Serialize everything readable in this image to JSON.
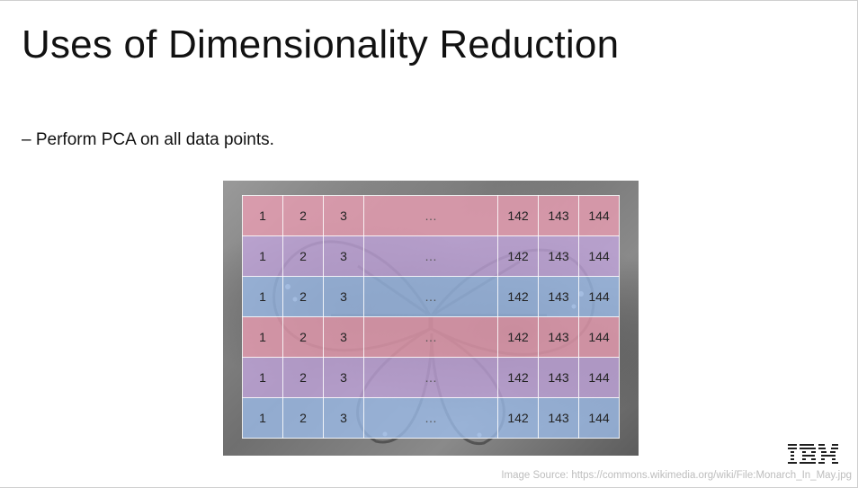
{
  "slide": {
    "title": "Uses of Dimensionality Reduction",
    "bullet": "– Perform PCA on all data points.",
    "source": "Image Source: https://commons.wikimedia.org/wiki/File:Monarch_In_May.jpg",
    "logo_text": "IBM"
  },
  "table": {
    "rows": [
      {
        "tint": "pink",
        "cells": [
          "1",
          "2",
          "3",
          "…",
          "142",
          "143",
          "144"
        ]
      },
      {
        "tint": "violet",
        "cells": [
          "1",
          "2",
          "3",
          "…",
          "142",
          "143",
          "144"
        ]
      },
      {
        "tint": "blue",
        "cells": [
          "1",
          "2",
          "3",
          "…",
          "142",
          "143",
          "144"
        ]
      },
      {
        "tint": "pink",
        "cells": [
          "1",
          "2",
          "3",
          "…",
          "142",
          "143",
          "144"
        ]
      },
      {
        "tint": "violet",
        "cells": [
          "1",
          "2",
          "3",
          "…",
          "142",
          "143",
          "144"
        ]
      },
      {
        "tint": "blue",
        "cells": [
          "1",
          "2",
          "3",
          "…",
          "142",
          "143",
          "144"
        ]
      }
    ]
  },
  "colors": {
    "pink": "#ec9eb4",
    "violet": "#c8a8e4",
    "blue": "#9ebeee",
    "ibm_blue": "#1f1f1f"
  }
}
